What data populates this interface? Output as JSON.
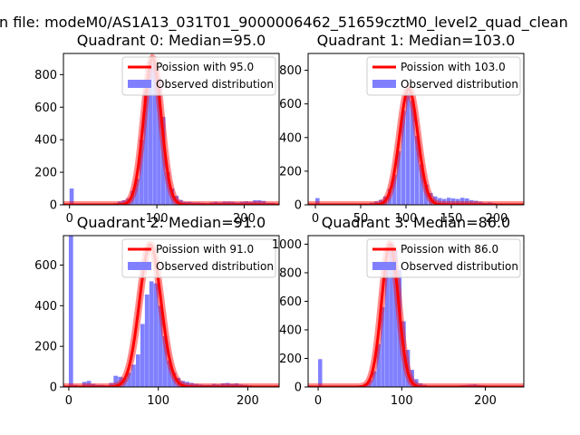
{
  "figure": {
    "suptitle": "n file: modeM0/AS1A13_031T01_9000006462_51659cztM0_level2_quad_clean"
  },
  "chart_data": [
    {
      "type": "bar",
      "title": "Quadrant 0: Median=95.0",
      "xlim": [
        -7,
        240
      ],
      "ylim": [
        0,
        930
      ],
      "xticks": [
        0,
        100,
        200
      ],
      "yticks": [
        0,
        200,
        400,
        600,
        800
      ],
      "legend": {
        "placement": "upper-right",
        "entries": [
          "Poission with 95.0",
          "Observed distribution"
        ]
      },
      "colors": {
        "hist": "#8080ff",
        "curve": "#ff0000"
      },
      "poisson_mean": 95.0,
      "poisson_peak": 900,
      "poisson_width": 10,
      "bin_width": 4.8,
      "bins": [
        [
          0,
          100
        ],
        [
          5,
          0
        ],
        [
          10,
          0
        ],
        [
          15,
          0
        ],
        [
          20,
          0
        ],
        [
          25,
          0
        ],
        [
          30,
          0
        ],
        [
          35,
          0
        ],
        [
          40,
          5
        ],
        [
          45,
          5
        ],
        [
          50,
          10
        ],
        [
          55,
          20
        ],
        [
          60,
          28
        ],
        [
          65,
          40
        ],
        [
          70,
          85
        ],
        [
          75,
          160
        ],
        [
          80,
          400
        ],
        [
          85,
          700
        ],
        [
          90,
          880
        ],
        [
          95,
          870
        ],
        [
          100,
          780
        ],
        [
          105,
          540
        ],
        [
          110,
          200
        ],
        [
          115,
          100
        ],
        [
          120,
          55
        ],
        [
          125,
          30
        ],
        [
          130,
          18
        ],
        [
          135,
          18
        ],
        [
          140,
          14
        ],
        [
          145,
          14
        ],
        [
          150,
          12
        ],
        [
          155,
          10
        ],
        [
          160,
          14
        ],
        [
          165,
          18
        ],
        [
          170,
          14
        ],
        [
          175,
          20
        ],
        [
          180,
          20
        ],
        [
          185,
          18
        ],
        [
          190,
          14
        ],
        [
          195,
          18
        ],
        [
          200,
          22
        ],
        [
          205,
          18
        ],
        [
          210,
          28
        ],
        [
          215,
          28
        ],
        [
          220,
          24
        ],
        [
          225,
          12
        ],
        [
          230,
          12
        ]
      ]
    },
    {
      "type": "bar",
      "title": "Quadrant 1: Median=103.0",
      "xlim": [
        -8,
        230
      ],
      "ylim": [
        0,
        900
      ],
      "xticks": [
        0,
        50,
        100,
        150,
        200
      ],
      "yticks": [
        0,
        200,
        400,
        600,
        800
      ],
      "legend": {
        "placement": "upper-right",
        "entries": [
          "Poission with 103.0",
          "Observed distribution"
        ]
      },
      "colors": {
        "hist": "#8080ff",
        "curve": "#ff0000"
      },
      "poisson_mean": 103.0,
      "poisson_peak": 690,
      "poisson_width": 10,
      "bin_width": 4.6,
      "bins": [
        [
          0,
          40
        ],
        [
          5,
          0
        ],
        [
          10,
          0
        ],
        [
          15,
          0
        ],
        [
          20,
          0
        ],
        [
          25,
          0
        ],
        [
          30,
          0
        ],
        [
          35,
          0
        ],
        [
          40,
          0
        ],
        [
          45,
          4
        ],
        [
          50,
          6
        ],
        [
          55,
          8
        ],
        [
          60,
          12
        ],
        [
          65,
          20
        ],
        [
          70,
          30
        ],
        [
          75,
          50
        ],
        [
          80,
          95
        ],
        [
          85,
          180
        ],
        [
          90,
          320
        ],
        [
          95,
          560
        ],
        [
          100,
          665
        ],
        [
          105,
          620
        ],
        [
          110,
          410
        ],
        [
          115,
          240
        ],
        [
          120,
          120
        ],
        [
          125,
          70
        ],
        [
          130,
          50
        ],
        [
          135,
          40
        ],
        [
          140,
          35
        ],
        [
          145,
          42
        ],
        [
          150,
          38
        ],
        [
          155,
          35
        ],
        [
          160,
          42
        ],
        [
          165,
          38
        ],
        [
          170,
          28
        ],
        [
          175,
          24
        ],
        [
          180,
          18
        ],
        [
          185,
          12
        ],
        [
          190,
          14
        ],
        [
          195,
          10
        ],
        [
          200,
          8
        ],
        [
          205,
          8
        ],
        [
          210,
          6
        ],
        [
          215,
          4
        ]
      ]
    },
    {
      "type": "bar",
      "title": "Quadrant 2: Median=91.0",
      "xlim": [
        -6,
        235
      ],
      "ylim": [
        0,
        745
      ],
      "xticks": [
        0,
        100,
        200
      ],
      "yticks": [
        0,
        200,
        400,
        600
      ],
      "legend": {
        "placement": "upper-right",
        "entries": [
          "Poission with 91.0",
          "Observed distribution"
        ]
      },
      "colors": {
        "hist": "#8080ff",
        "curve": "#ff0000"
      },
      "poisson_mean": 91.0,
      "poisson_peak": 700,
      "poisson_width": 12,
      "bin_width": 4.8,
      "bins": [
        [
          0,
          745
        ],
        [
          5,
          10
        ],
        [
          10,
          0
        ],
        [
          15,
          25
        ],
        [
          20,
          30
        ],
        [
          25,
          15
        ],
        [
          30,
          10
        ],
        [
          35,
          10
        ],
        [
          40,
          8
        ],
        [
          45,
          20
        ],
        [
          50,
          55
        ],
        [
          55,
          50
        ],
        [
          60,
          45
        ],
        [
          65,
          70
        ],
        [
          70,
          110
        ],
        [
          75,
          160
        ],
        [
          80,
          310
        ],
        [
          85,
          455
        ],
        [
          90,
          520
        ],
        [
          95,
          510
        ],
        [
          100,
          400
        ],
        [
          105,
          250
        ],
        [
          110,
          130
        ],
        [
          115,
          70
        ],
        [
          120,
          45
        ],
        [
          125,
          30
        ],
        [
          130,
          25
        ],
        [
          135,
          20
        ],
        [
          140,
          15
        ],
        [
          145,
          12
        ],
        [
          150,
          10
        ],
        [
          155,
          10
        ],
        [
          160,
          15
        ],
        [
          165,
          12
        ],
        [
          170,
          18
        ],
        [
          175,
          20
        ],
        [
          180,
          15
        ],
        [
          185,
          18
        ],
        [
          190,
          12
        ],
        [
          195,
          10
        ],
        [
          200,
          8
        ],
        [
          205,
          6
        ],
        [
          210,
          4
        ],
        [
          215,
          4
        ],
        [
          220,
          2
        ]
      ]
    },
    {
      "type": "bar",
      "title": "Quadrant 3: Median=86.0",
      "xlim": [
        -12,
        246
      ],
      "ylim": [
        0,
        1060
      ],
      "xticks": [
        0,
        100,
        200
      ],
      "yticks": [
        0,
        200,
        400,
        600,
        800,
        1000
      ],
      "legend": {
        "placement": "upper-right",
        "entries": [
          "Poission with 86.0",
          "Observed distribution"
        ]
      },
      "colors": {
        "hist": "#8080ff",
        "curve": "#ff0000"
      },
      "poisson_mean": 86.0,
      "poisson_peak": 1000,
      "poisson_width": 10,
      "bin_width": 4.8,
      "bins": [
        [
          0,
          195
        ],
        [
          5,
          0
        ],
        [
          10,
          0
        ],
        [
          15,
          0
        ],
        [
          20,
          0
        ],
        [
          25,
          0
        ],
        [
          30,
          0
        ],
        [
          35,
          0
        ],
        [
          40,
          5
        ],
        [
          45,
          8
        ],
        [
          50,
          12
        ],
        [
          55,
          25
        ],
        [
          60,
          50
        ],
        [
          65,
          110
        ],
        [
          70,
          300
        ],
        [
          75,
          560
        ],
        [
          80,
          820
        ],
        [
          85,
          1000
        ],
        [
          90,
          960
        ],
        [
          95,
          820
        ],
        [
          100,
          460
        ],
        [
          105,
          260
        ],
        [
          110,
          120
        ],
        [
          115,
          55
        ],
        [
          120,
          25
        ],
        [
          125,
          15
        ],
        [
          130,
          10
        ],
        [
          135,
          8
        ],
        [
          140,
          6
        ],
        [
          145,
          5
        ],
        [
          150,
          5
        ],
        [
          155,
          6
        ],
        [
          160,
          8
        ],
        [
          165,
          10
        ],
        [
          170,
          12
        ],
        [
          175,
          14
        ],
        [
          180,
          16
        ],
        [
          185,
          18
        ],
        [
          190,
          14
        ],
        [
          195,
          12
        ],
        [
          200,
          10
        ],
        [
          205,
          8
        ],
        [
          210,
          6
        ],
        [
          215,
          5
        ],
        [
          220,
          4
        ],
        [
          225,
          3
        ],
        [
          230,
          2
        ]
      ]
    }
  ]
}
